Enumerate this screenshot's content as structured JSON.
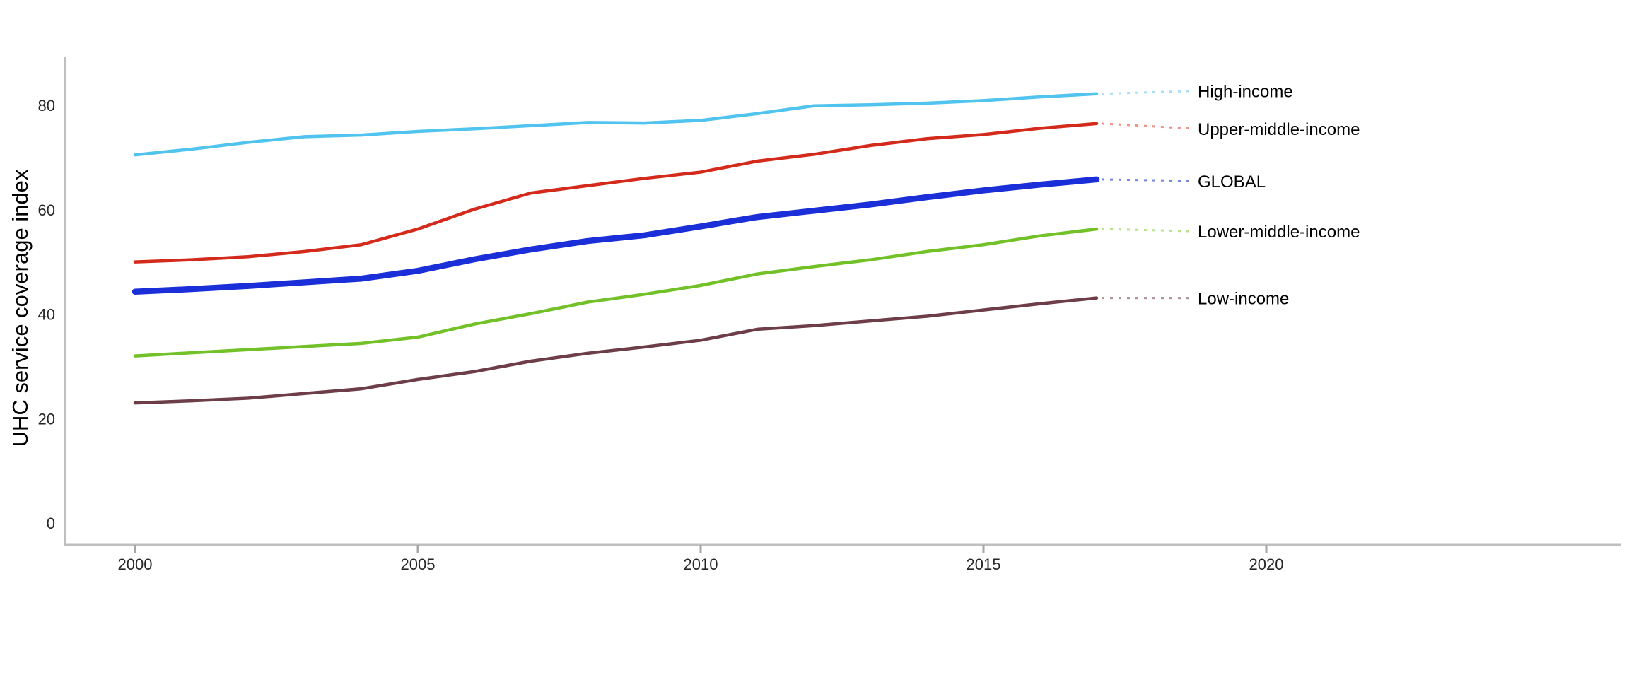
{
  "chart": {
    "background": "#ffffff",
    "axis_color": "#bfbfbf",
    "tick_color": "#a6a6a6",
    "tick_label_color": "#262626",
    "series_label_color": "#000000"
  },
  "chart_data": {
    "type": "line",
    "title": "",
    "xlabel": "",
    "ylabel": "UHC service coverage index",
    "grid": false,
    "legend_position": "right-edge-line-labels",
    "x": [
      2000,
      2001,
      2002,
      2003,
      2004,
      2005,
      2006,
      2007,
      2008,
      2009,
      2010,
      2011,
      2012,
      2013,
      2014,
      2015,
      2016,
      2017
    ],
    "x_ticks": [
      2000,
      2005,
      2010,
      2015,
      2020
    ],
    "y_ticks": [
      0,
      20,
      40,
      60,
      80
    ],
    "xlim": [
      1998.8,
      2026.3
    ],
    "ylim": [
      0,
      89
    ],
    "series": [
      {
        "name": "High-income",
        "color": "#50c3ee",
        "leader_color": "#a7dff7",
        "emphasis": false,
        "values": [
          70.5,
          71.6,
          72.9,
          74.0,
          74.3,
          75.0,
          75.5,
          76.1,
          76.7,
          76.6,
          77.1,
          78.4,
          79.9,
          80.1,
          80.4,
          80.9,
          81.6,
          82.2
        ]
      },
      {
        "name": "Upper-middle-income",
        "color": "#d32a1b",
        "leader_color": "#f19086",
        "emphasis": false,
        "values": [
          50.0,
          50.4,
          51.0,
          52.0,
          53.3,
          56.3,
          60.1,
          63.2,
          64.6,
          66.0,
          67.2,
          69.3,
          70.6,
          72.3,
          73.6,
          74.4,
          75.6,
          76.5
        ]
      },
      {
        "name": "GLOBAL",
        "color": "#1b2fd8",
        "leader_color": "#7585e5",
        "emphasis": true,
        "values": [
          44.3,
          44.8,
          45.4,
          46.1,
          46.8,
          48.3,
          50.5,
          52.4,
          54.0,
          55.1,
          56.8,
          58.6,
          59.8,
          61.0,
          62.4,
          63.7,
          64.8,
          65.8
        ]
      },
      {
        "name": "Lower-middle-income",
        "color": "#73c128",
        "leader_color": "#b6e28c",
        "emphasis": false,
        "values": [
          32.0,
          32.6,
          33.2,
          33.8,
          34.4,
          35.6,
          38.1,
          40.1,
          42.3,
          43.8,
          45.5,
          47.7,
          49.1,
          50.4,
          52.0,
          53.3,
          55.0,
          56.3
        ]
      },
      {
        "name": "Low-income",
        "color": "#6e3e48",
        "leader_color": "#af8c93",
        "emphasis": false,
        "values": [
          23.0,
          23.4,
          23.9,
          24.8,
          25.7,
          27.5,
          29.0,
          31.0,
          32.5,
          33.7,
          35.0,
          37.1,
          37.8,
          38.7,
          39.6,
          40.8,
          42.0,
          43.1
        ]
      }
    ]
  }
}
